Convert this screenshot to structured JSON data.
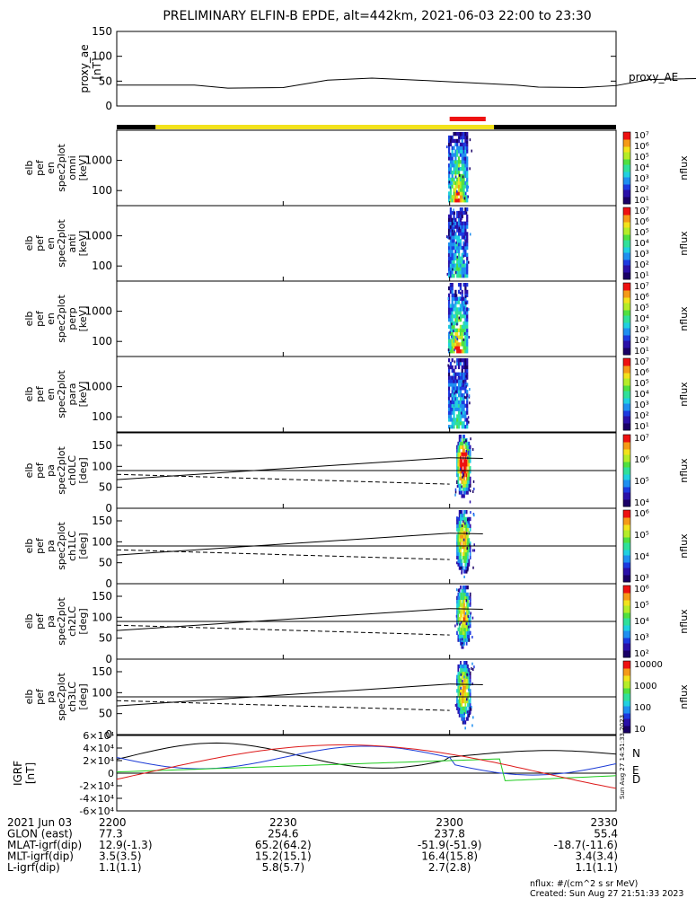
{
  "title": "PRELIMINARY ELFIN-B EPDE, alt=442km, 2021-06-03 22:00 to 23:30",
  "time_ticks": [
    "2200",
    "2230",
    "2300",
    "2330"
  ],
  "sun_bar": {
    "colors": {
      "black": "#000000",
      "yellow": "#f2e21c",
      "red": "#ee1111"
    }
  },
  "chart_data": [
    {
      "type": "line",
      "name": "proxy_ae",
      "ylabel_lines": [
        "proxy_ae",
        "[nT]"
      ],
      "ylim": [
        0,
        150
      ],
      "yticks": [
        "0",
        "50",
        "100",
        "150"
      ],
      "legend": "proxy_AE",
      "series": [
        {
          "values_vs_minutes": [
            [
              0,
              42
            ],
            [
              14,
              42
            ],
            [
              20,
              36
            ],
            [
              30,
              37
            ],
            [
              38,
              52
            ],
            [
              46,
              56
            ],
            [
              56,
              51
            ],
            [
              72,
              42
            ],
            [
              76,
              38
            ],
            [
              84,
              37
            ],
            [
              90,
              41
            ],
            [
              96,
              53
            ],
            [
              112,
              57
            ],
            [
              124,
              54
            ],
            [
              136,
              50
            ],
            [
              145,
              50
            ],
            [
              150,
              52
            ]
          ]
        }
      ]
    },
    {
      "type": "heatmap",
      "ylabel_lines": [
        "elb",
        "pef",
        "en",
        "spec2plot",
        "omni",
        "[keV]"
      ],
      "yticks": [
        "100",
        "1000"
      ],
      "colorbar": {
        "label": "nflux",
        "ticks": [
          "10¹",
          "10²",
          "10³",
          "10⁴",
          "10⁵",
          "10⁶",
          "10⁷"
        ]
      }
    },
    {
      "type": "heatmap",
      "ylabel_lines": [
        "elb",
        "pef",
        "en",
        "spec2plot",
        "anti",
        "[keV]"
      ],
      "yticks": [
        "100",
        "1000"
      ],
      "colorbar": {
        "label": "nflux",
        "ticks": [
          "10¹",
          "10²",
          "10³",
          "10⁴",
          "10⁵",
          "10⁶",
          "10⁷"
        ]
      }
    },
    {
      "type": "heatmap",
      "ylabel_lines": [
        "elb",
        "pef",
        "en",
        "spec2plot",
        "perp",
        "[keV]"
      ],
      "yticks": [
        "100",
        "1000"
      ],
      "colorbar": {
        "label": "nflux",
        "ticks": [
          "10¹",
          "10²",
          "10³",
          "10⁴",
          "10⁵",
          "10⁶",
          "10⁷"
        ]
      }
    },
    {
      "type": "heatmap",
      "ylabel_lines": [
        "elb",
        "pef",
        "en",
        "spec2plot",
        "para",
        "[keV]"
      ],
      "yticks": [
        "100",
        "1000"
      ],
      "colorbar": {
        "label": "nflux",
        "ticks": [
          "10¹",
          "10²",
          "10³",
          "10⁴",
          "10⁵",
          "10⁶",
          "10⁷"
        ]
      }
    },
    {
      "type": "heatmap",
      "ylabel_lines": [
        "elb",
        "pef",
        "pa",
        "spec2plot",
        "ch0LC",
        "[deg]"
      ],
      "yticks": [
        "0",
        "50",
        "100",
        "150"
      ],
      "colorbar": {
        "label": "nflux",
        "ticks": [
          "10⁴",
          "10⁵",
          "10⁶",
          "10⁷"
        ]
      }
    },
    {
      "type": "heatmap",
      "ylabel_lines": [
        "elb",
        "pef",
        "pa",
        "spec2plot",
        "ch1LC",
        "[deg]"
      ],
      "yticks": [
        "0",
        "50",
        "100",
        "150"
      ],
      "colorbar": {
        "label": "nflux",
        "ticks": [
          "10³",
          "10⁴",
          "10⁵",
          "10⁶"
        ]
      }
    },
    {
      "type": "heatmap",
      "ylabel_lines": [
        "elb",
        "pef",
        "pa",
        "spec2plot",
        "ch2LC",
        "[deg]"
      ],
      "yticks": [
        "0",
        "50",
        "100",
        "150"
      ],
      "colorbar": {
        "label": "nflux",
        "ticks": [
          "10²",
          "10³",
          "10⁴",
          "10⁵",
          "10⁶"
        ]
      }
    },
    {
      "type": "heatmap",
      "ylabel_lines": [
        "elb",
        "pef",
        "pa",
        "spec2plot",
        "ch3LC",
        "[deg]"
      ],
      "yticks": [
        "0",
        "50",
        "100",
        "150"
      ],
      "colorbar": {
        "label": "nflux",
        "ticks": [
          "10",
          "100",
          "1000",
          "10000"
        ]
      }
    },
    {
      "type": "line",
      "ylabel_lines": [
        "IGRF",
        "[nT]"
      ],
      "ylim": [
        -60000,
        60000
      ],
      "yticks": [
        "-6×10⁴",
        "-4×10⁴",
        "-2×10⁴",
        "0",
        "2×10⁴",
        "4×10⁴",
        "6×10⁴"
      ],
      "legend": [
        "N",
        "E",
        "D"
      ],
      "colors": {
        "N": "#1c3bd6",
        "E": "#1fcc1f",
        "D": "#dd1a1a",
        "total": "#000000"
      }
    }
  ],
  "footer_rows": [
    {
      "label": "2021 Jun 03",
      "values": [
        "2200",
        "2230",
        "2300",
        "2330"
      ]
    },
    {
      "label": "GLON (east)",
      "values": [
        "77.3",
        "254.6",
        "237.8",
        "55.4"
      ]
    },
    {
      "label": "MLAT-igrf(dip)",
      "values": [
        "12.9(-1.3)",
        "65.2(64.2)",
        "-51.9(-51.9)",
        "-18.7(-11.6)"
      ]
    },
    {
      "label": "MLT-igrf(dip)",
      "values": [
        "3.5(3.5)",
        "15.2(15.1)",
        "16.4(15.8)",
        "3.4(3.4)"
      ]
    },
    {
      "label": "L-igrf(dip)",
      "values": [
        "1.1(1.1)",
        "5.8(5.7)",
        "2.7(2.8)",
        "1.1(1.1)"
      ]
    }
  ],
  "units_note": "nflux: #/(cm^2 s sr MeV)",
  "created_note": "Created: Sun Aug 27 21:51:33 2023",
  "side_stamp": "Sun Aug 27 14:51:33 2023"
}
